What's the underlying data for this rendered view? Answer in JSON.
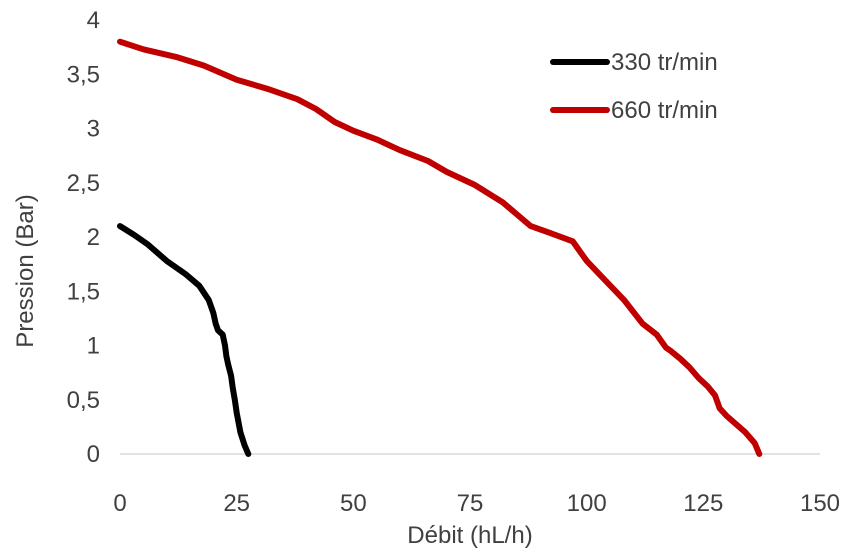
{
  "chart_data": {
    "type": "line",
    "title": "",
    "xlabel": "Débit (hL/h)",
    "ylabel": "Pression (Bar)",
    "xlim": [
      0,
      150
    ],
    "ylim": [
      0,
      4
    ],
    "x_ticks": [
      "0",
      "25",
      "50",
      "75",
      "100",
      "125",
      "150"
    ],
    "y_ticks": [
      "0",
      "0,5",
      "1",
      "1,5",
      "2",
      "2,5",
      "3",
      "3,5",
      "4"
    ],
    "grid": false,
    "legend_position": "top-right",
    "series": [
      {
        "name": "330 tr/min",
        "color": "#000000",
        "x": [
          0,
          3,
          6,
          10,
          14,
          17,
          19,
          20,
          20.5,
          21,
          22,
          22.5,
          22.8,
          23.2,
          23.8,
          24.2,
          24.6,
          25,
          25.8,
          26.7,
          27.5
        ],
        "y": [
          2.1,
          2.02,
          1.93,
          1.78,
          1.66,
          1.55,
          1.42,
          1.3,
          1.2,
          1.14,
          1.1,
          1.0,
          0.9,
          0.82,
          0.72,
          0.6,
          0.5,
          0.38,
          0.2,
          0.08,
          0
        ]
      },
      {
        "name": "660 tr/min",
        "color": "#c00000",
        "x": [
          0,
          5,
          12,
          18,
          25,
          32,
          38,
          42,
          46,
          50,
          55,
          60,
          66,
          70,
          76,
          82,
          88,
          92,
          97,
          100,
          104,
          108,
          112,
          115,
          117,
          118,
          120,
          122,
          124,
          126,
          127.5,
          128.5,
          130,
          134,
          136,
          137
        ],
        "y": [
          3.8,
          3.73,
          3.66,
          3.58,
          3.45,
          3.36,
          3.27,
          3.18,
          3.06,
          2.98,
          2.9,
          2.8,
          2.7,
          2.6,
          2.48,
          2.32,
          2.1,
          2.04,
          1.96,
          1.78,
          1.6,
          1.42,
          1.2,
          1.1,
          0.98,
          0.95,
          0.88,
          0.8,
          0.7,
          0.62,
          0.54,
          0.42,
          0.35,
          0.2,
          0.1,
          0
        ]
      }
    ]
  }
}
